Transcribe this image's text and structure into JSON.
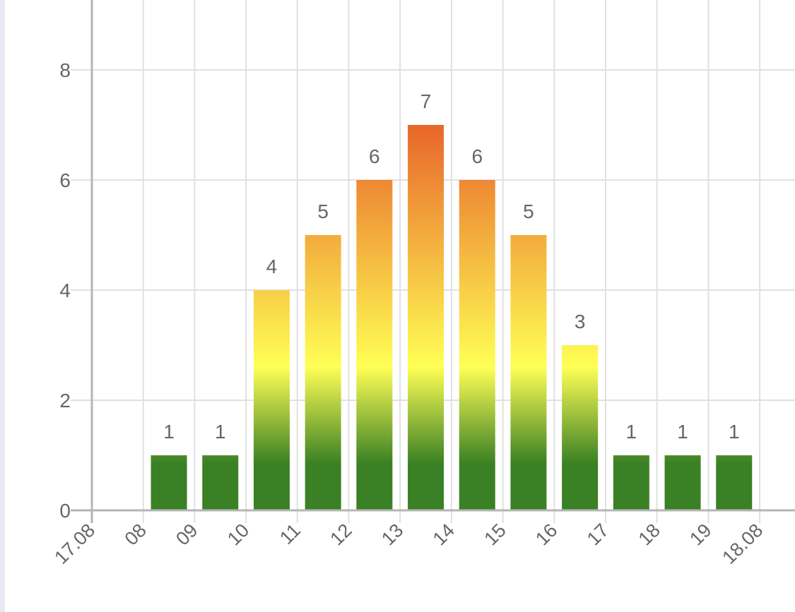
{
  "chart_data": {
    "type": "bar",
    "title": "",
    "xlabel": "",
    "ylabel": "",
    "ylim": [
      0,
      8.4
    ],
    "y_ticks": [
      0,
      2,
      4,
      6,
      8
    ],
    "x_tick_labels": [
      "17.08",
      "08",
      "09",
      "10",
      "11",
      "12",
      "13",
      "14",
      "15",
      "16",
      "17",
      "18",
      "19",
      "18.08"
    ],
    "categories": [
      "08",
      "09",
      "10",
      "11",
      "12",
      "13",
      "14",
      "15",
      "16",
      "17",
      "18",
      "19"
    ],
    "values": [
      1,
      1,
      4,
      5,
      6,
      7,
      6,
      5,
      3,
      1,
      1,
      1
    ],
    "grid": true,
    "legend": "none",
    "colors": {
      "gradient_low": "#3a8024",
      "gradient_mid": "#ffff55",
      "gradient_high": "#e8652a",
      "grid": "#e0e0e0",
      "axis": "#b5b5b5",
      "text": "#666666"
    }
  }
}
